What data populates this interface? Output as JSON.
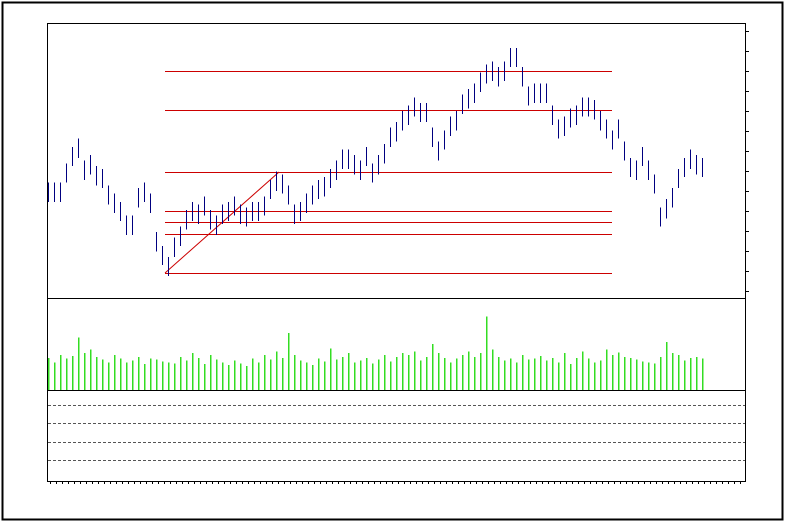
{
  "chart_data": {
    "type": "ohlc",
    "color": "#000080",
    "volume_color": "#33dd22",
    "fib_color": "#cc0000",
    "xlim": [
      -0.17,
      116.17
    ],
    "ylim": [
      0,
      100
    ],
    "volume_ylim": [
      0,
      100
    ],
    "high": [
      42,
      42,
      42,
      49,
      55,
      58,
      50,
      52,
      48,
      47,
      41,
      38,
      35,
      30,
      30,
      40,
      42,
      38,
      24,
      19,
      15,
      22,
      26,
      32,
      35,
      34,
      37,
      32,
      30,
      34,
      35,
      37,
      34,
      33,
      35,
      35,
      37,
      43,
      46,
      45,
      41,
      34,
      35,
      38,
      41,
      43,
      44,
      47,
      50,
      54,
      54,
      52,
      50,
      55,
      49,
      52,
      56,
      62,
      64,
      68,
      70,
      73,
      71,
      71,
      62,
      57,
      61,
      66,
      68,
      74,
      76,
      78,
      82,
      85,
      86,
      84,
      86,
      91,
      91,
      84,
      77,
      78,
      78,
      78,
      70,
      65,
      66,
      69,
      70,
      73,
      73,
      72,
      68,
      65,
      61,
      65,
      57,
      51,
      50,
      55,
      50,
      45,
      33,
      36,
      40,
      47,
      51,
      54,
      52,
      51
    ],
    "low": [
      35,
      35,
      35,
      42,
      48,
      51,
      43,
      45,
      41,
      40,
      34,
      31,
      28,
      23,
      23,
      33,
      35,
      31,
      17,
      12,
      8,
      15,
      19,
      25,
      28,
      27,
      30,
      25,
      23,
      27,
      28,
      30,
      27,
      26,
      28,
      28,
      30,
      36,
      39,
      38,
      34,
      27,
      28,
      31,
      34,
      36,
      37,
      40,
      43,
      47,
      47,
      45,
      43,
      48,
      42,
      45,
      49,
      55,
      57,
      61,
      63,
      66,
      64,
      64,
      55,
      50,
      54,
      59,
      61,
      67,
      69,
      71,
      75,
      78,
      79,
      77,
      79,
      84,
      84,
      77,
      70,
      71,
      71,
      71,
      63,
      58,
      59,
      62,
      63,
      66,
      66,
      65,
      61,
      58,
      54,
      58,
      50,
      44,
      43,
      48,
      43,
      38,
      26,
      29,
      33,
      40,
      44,
      47,
      45,
      44
    ],
    "volume": [
      35,
      30,
      38,
      34,
      37,
      57,
      40,
      44,
      36,
      33,
      30,
      38,
      34,
      30,
      32,
      36,
      28,
      34,
      33,
      31,
      30,
      29,
      36,
      32,
      40,
      35,
      28,
      38,
      33,
      30,
      27,
      32,
      29,
      26,
      34,
      30,
      38,
      33,
      42,
      35,
      62,
      38,
      32,
      30,
      27,
      34,
      31,
      45,
      33,
      36,
      40,
      30,
      32,
      35,
      29,
      33,
      38,
      31,
      36,
      40,
      38,
      42,
      32,
      36,
      50,
      40,
      35,
      30,
      34,
      38,
      42,
      36,
      40,
      80,
      44,
      36,
      32,
      34,
      30,
      38,
      33,
      34,
      37,
      32,
      35,
      30,
      40,
      28,
      35,
      42,
      34,
      30,
      32,
      44,
      38,
      41,
      36,
      35,
      33,
      31,
      30,
      29,
      36,
      52,
      40,
      38,
      32,
      35,
      36,
      34
    ],
    "fib_levels": [
      82.5,
      68.4,
      45.8,
      31.6,
      27.6,
      23.3,
      9.1
    ],
    "fib_x": [
      19.5,
      94
    ],
    "trend": {
      "x": [
        19.5,
        38.5
      ],
      "y": [
        9.1,
        45.8
      ]
    }
  }
}
